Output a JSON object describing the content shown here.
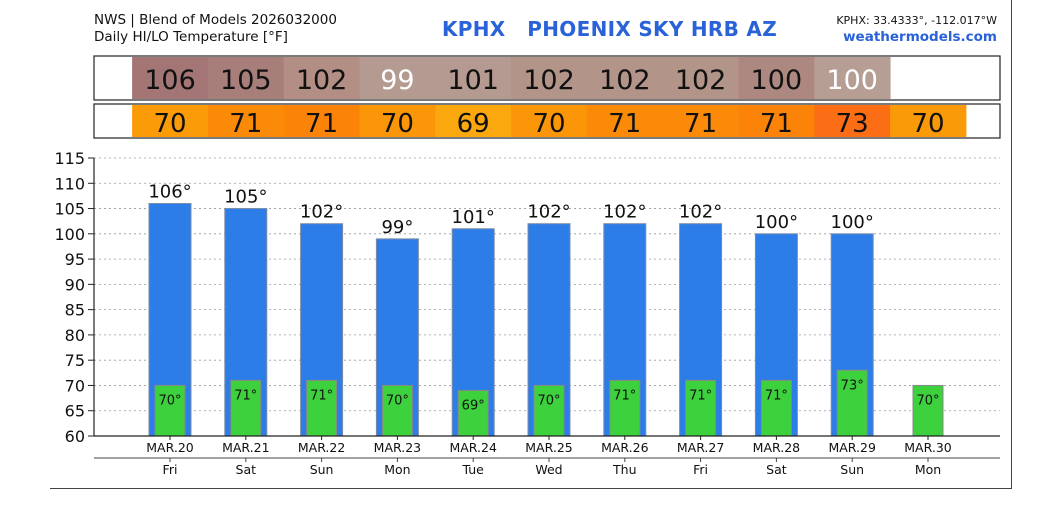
{
  "header": {
    "line1": "NWS | Blend of Models 2026032000",
    "line2": "Daily HI/LO Temperature [°F]",
    "station_title": "KPHX   PHOENIX SKY HRB AZ",
    "coords": "KPHX: 33.4333°, -112.017°W",
    "site": "weathermodels.com"
  },
  "colors": {
    "high_bar": "#2d7de8",
    "low_bar": "#3dd13d",
    "high_strip": [
      "#a47575",
      "#a87e7a",
      "#b28e84",
      "#b49a90",
      "#b49a90",
      "#b39488",
      "#b39488",
      "#b39488",
      "#ac8880",
      "#b69e95"
    ],
    "high_strip_text": [
      "#111111",
      "#111111",
      "#111111",
      "#ffffff",
      "#111111",
      "#111111",
      "#111111",
      "#111111",
      "#111111",
      "#ffffff"
    ],
    "low_strip": [
      "#fb9b08",
      "#fb8a08",
      "#fb8408",
      "#fb9608",
      "#fba80e",
      "#fb9608",
      "#fb8a08",
      "#fb8a08",
      "#fb8408",
      "#fb6e16",
      "#fb9a08"
    ]
  },
  "chart_data": {
    "type": "bar",
    "categories": [
      "MAR.20",
      "MAR.21",
      "MAR.22",
      "MAR.23",
      "MAR.24",
      "MAR.25",
      "MAR.26",
      "MAR.27",
      "MAR.28",
      "MAR.29",
      "MAR.30"
    ],
    "weekdays": [
      "Fri",
      "Sat",
      "Sun",
      "Mon",
      "Tue",
      "Wed",
      "Thu",
      "Fri",
      "Sat",
      "Sun",
      "Mon"
    ],
    "series": [
      {
        "values": [
          106,
          105,
          102,
          99,
          101,
          102,
          102,
          102,
          100,
          100,
          null
        ],
        "labels": [
          "106°",
          "105°",
          "102°",
          "99°",
          "101°",
          "102°",
          "102°",
          "102°",
          "100°",
          "100°",
          ""
        ],
        "strip_labels": [
          "106",
          "105",
          "102",
          "99",
          "101",
          "102",
          "102",
          "102",
          "100",
          "100",
          ""
        ]
      },
      {
        "values": [
          70,
          71,
          71,
          70,
          69,
          70,
          71,
          71,
          71,
          73,
          70
        ],
        "labels": [
          "70°",
          "71°",
          "71°",
          "70°",
          "69°",
          "70°",
          "71°",
          "71°",
          "71°",
          "73°",
          "70°"
        ],
        "strip_labels": [
          "70",
          "71",
          "71",
          "70",
          "69",
          "70",
          "71",
          "71",
          "71",
          "73",
          "70"
        ]
      }
    ],
    "ylim": [
      60,
      115
    ],
    "yticks": [
      "60",
      "65",
      "70",
      "75",
      "80",
      "85",
      "90",
      "95",
      "100",
      "105",
      "110",
      "115"
    ],
    "grid": true
  }
}
